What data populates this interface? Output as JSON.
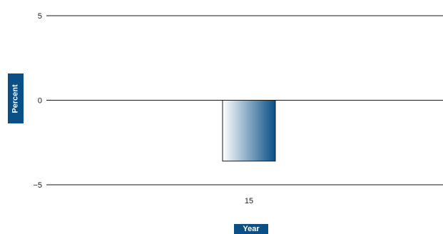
{
  "chart_data": {
    "type": "bar",
    "categories": [
      "15"
    ],
    "values": [
      -3.6
    ],
    "xlabel": "Year",
    "ylabel": "Percent",
    "ylim": [
      -5,
      5
    ],
    "yticks": [
      5,
      0,
      -5
    ],
    "ytick_labels": [
      "5",
      "0",
      "−5"
    ],
    "grid": true,
    "colors": {
      "bar_dark": "#0a4f86",
      "bar_light": "#ffffff",
      "badge": "#0a4f86"
    }
  }
}
